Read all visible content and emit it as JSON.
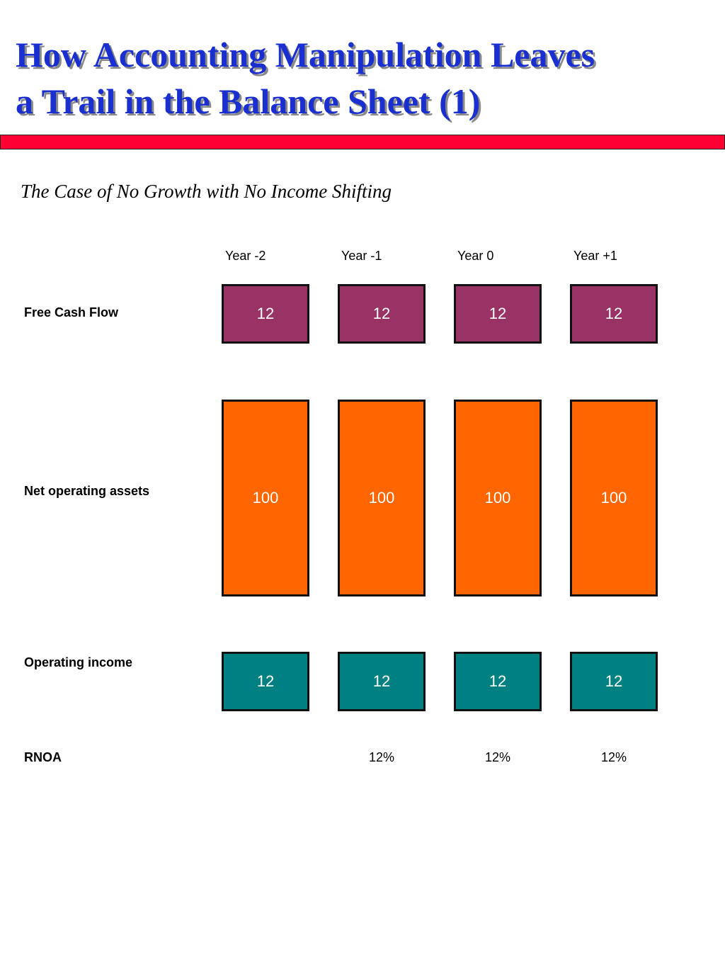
{
  "title": {
    "line1": "How Accounting Manipulation Leaves",
    "line2": "a Trail in the Balance Sheet (1)"
  },
  "subtitle": "The Case of No Growth with No Income Shifting",
  "years": [
    "Year -2",
    "Year -1",
    "Year 0",
    "Year +1"
  ],
  "rows": {
    "free_cash_flow": {
      "label": "Free Cash Flow",
      "color": "#993366",
      "values": [
        "12",
        "12",
        "12",
        "12"
      ]
    },
    "net_operating_assets": {
      "label": "Net operating assets",
      "color": "#ff6600",
      "values": [
        "100",
        "100",
        "100",
        "100"
      ]
    },
    "operating_income": {
      "label": "Operating income",
      "color": "#008080",
      "values": [
        "12",
        "12",
        "12",
        "12"
      ]
    },
    "rnoa": {
      "label": "RNOA",
      "values": [
        "",
        "12%",
        "12%",
        "12%"
      ]
    }
  },
  "colors": {
    "title": "#1a2fd0",
    "title_bar": "#ff0033"
  }
}
